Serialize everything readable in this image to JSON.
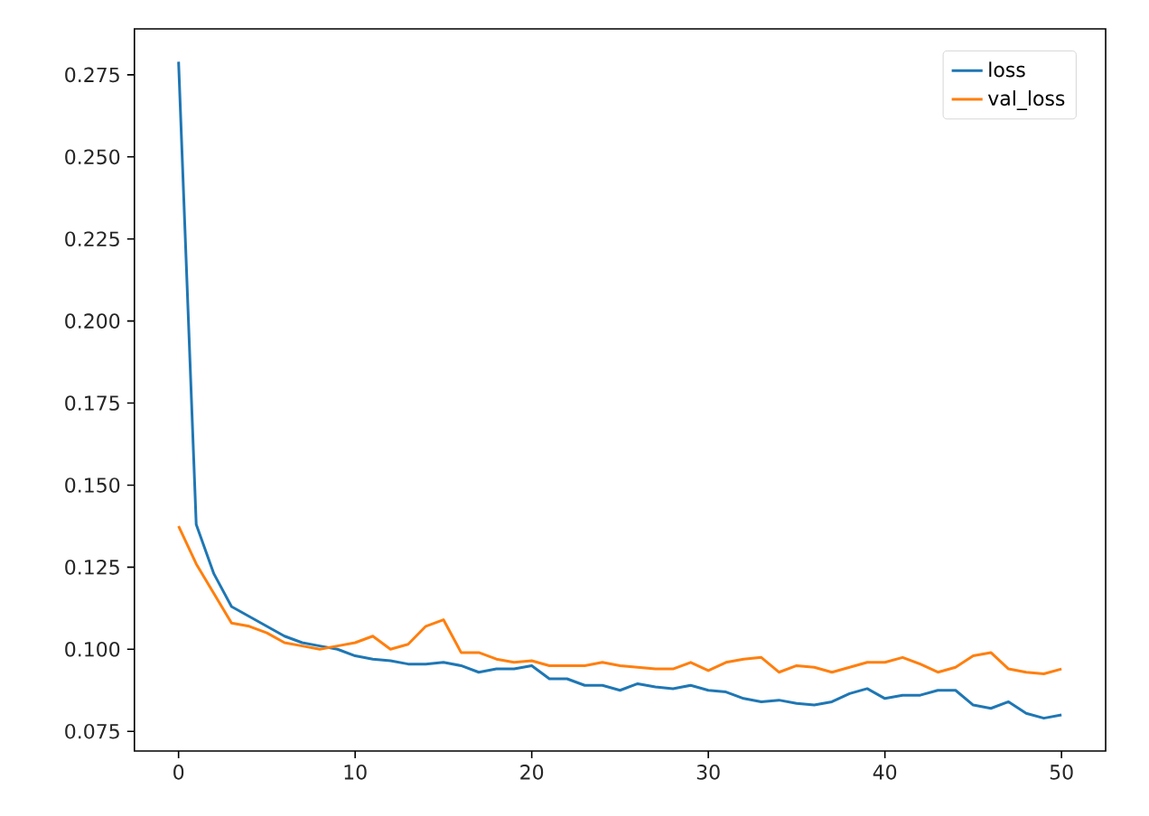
{
  "chart_data": {
    "type": "line",
    "x": [
      0,
      1,
      2,
      3,
      4,
      5,
      6,
      7,
      8,
      9,
      10,
      11,
      12,
      13,
      14,
      15,
      16,
      17,
      18,
      19,
      20,
      21,
      22,
      23,
      24,
      25,
      26,
      27,
      28,
      29,
      30,
      31,
      32,
      33,
      34,
      35,
      36,
      37,
      38,
      39,
      40,
      41,
      42,
      43,
      44,
      45,
      46,
      47,
      48,
      49,
      50
    ],
    "series": [
      {
        "name": "loss",
        "color": "#1f77b4",
        "values": [
          0.279,
          0.138,
          0.123,
          0.113,
          0.11,
          0.107,
          0.104,
          0.102,
          0.101,
          0.1,
          0.098,
          0.097,
          0.0965,
          0.0955,
          0.0955,
          0.096,
          0.095,
          0.093,
          0.094,
          0.094,
          0.095,
          0.091,
          0.091,
          0.089,
          0.089,
          0.0875,
          0.0895,
          0.0885,
          0.088,
          0.089,
          0.0875,
          0.087,
          0.085,
          0.084,
          0.0845,
          0.0835,
          0.083,
          0.084,
          0.0865,
          0.088,
          0.085,
          0.086,
          0.086,
          0.0875,
          0.0875,
          0.083,
          0.082,
          0.084,
          0.0805,
          0.079,
          0.08
        ]
      },
      {
        "name": "val_loss",
        "color": "#ff7f0e",
        "values": [
          0.1375,
          0.126,
          0.117,
          0.108,
          0.107,
          0.105,
          0.102,
          0.101,
          0.1,
          0.101,
          0.102,
          0.104,
          0.1,
          0.1015,
          0.107,
          0.109,
          0.099,
          0.099,
          0.097,
          0.096,
          0.0965,
          0.095,
          0.095,
          0.095,
          0.096,
          0.095,
          0.0945,
          0.094,
          0.094,
          0.096,
          0.0935,
          0.096,
          0.097,
          0.0975,
          0.093,
          0.095,
          0.0945,
          0.093,
          0.0945,
          0.096,
          0.096,
          0.0975,
          0.0955,
          0.093,
          0.0945,
          0.098,
          0.099,
          0.094,
          0.093,
          0.0925,
          0.094
        ]
      }
    ],
    "xlim": [
      -2.5,
      52.5
    ],
    "ylim": [
      0.069,
      0.289
    ],
    "xticks": [
      0,
      10,
      20,
      30,
      40,
      50
    ],
    "yticks": [
      {
        "value": 0.075,
        "label": "0.075"
      },
      {
        "value": 0.1,
        "label": "0.100"
      },
      {
        "value": 0.125,
        "label": "0.125"
      },
      {
        "value": 0.15,
        "label": "0.150"
      },
      {
        "value": 0.175,
        "label": "0.175"
      },
      {
        "value": 0.2,
        "label": "0.200"
      },
      {
        "value": 0.225,
        "label": "0.225"
      },
      {
        "value": 0.25,
        "label": "0.250"
      },
      {
        "value": 0.275,
        "label": "0.275"
      }
    ],
    "grid": false,
    "legend": "top right",
    "marker": "none",
    "line_style": "solid"
  }
}
